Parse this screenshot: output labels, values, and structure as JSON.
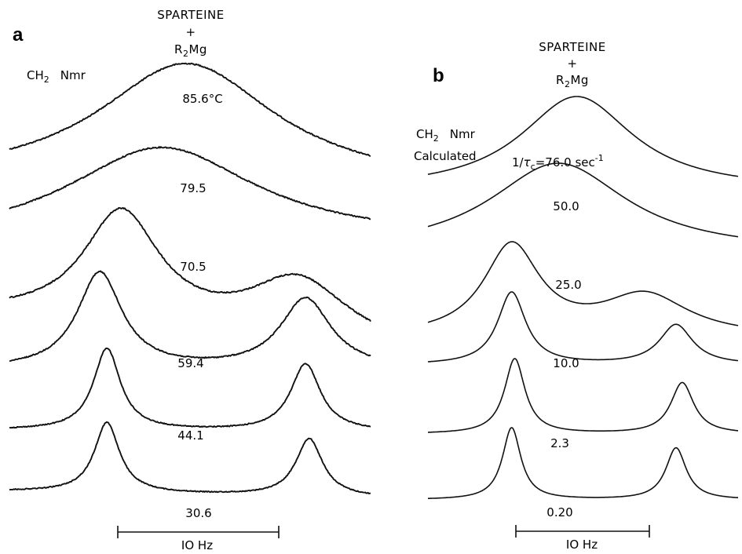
{
  "chart_data": [
    {
      "type": "line",
      "panel": "a",
      "title_lines": [
        "SPARTEINE",
        "+",
        "R2Mg"
      ],
      "nucleus_label": "CH2 Nmr",
      "unit_suffix": "°C",
      "scale_bar": "10 Hz",
      "series": [
        {
          "name": "85.6°C",
          "label": "85.6°C",
          "value": 85.6,
          "shape": "single",
          "peaks": [
            {
              "pos": 0.49,
              "h": 1.0,
              "w": 0.3
            }
          ],
          "skew": 0.0,
          "noise": 1.6
        },
        {
          "name": "79.5",
          "label": "79.5",
          "value": 79.5,
          "shape": "single",
          "peaks": [
            {
              "pos": 0.42,
              "h": 1.0,
              "w": 0.32
            }
          ],
          "skew": 0.0,
          "noise": 1.6
        },
        {
          "name": "70.5",
          "label": "70.5",
          "value": 70.5,
          "shape": "double",
          "peaks": [
            {
              "pos": 0.31,
              "h": 1.0,
              "w": 0.13
            },
            {
              "pos": 0.8,
              "h": 0.55,
              "w": 0.17
            }
          ],
          "noise": 1.7
        },
        {
          "name": "59.4",
          "label": "59.4",
          "value": 59.4,
          "shape": "double",
          "peaks": [
            {
              "pos": 0.25,
              "h": 1.0,
              "w": 0.075
            },
            {
              "pos": 0.82,
              "h": 0.73,
              "w": 0.085
            }
          ],
          "noise": 1.5
        },
        {
          "name": "44.1",
          "label": "44.1",
          "value": 44.1,
          "shape": "double",
          "peaks": [
            {
              "pos": 0.27,
              "h": 1.0,
              "w": 0.045
            },
            {
              "pos": 0.82,
              "h": 0.82,
              "w": 0.05
            }
          ],
          "noise": 1.3
        },
        {
          "name": "30.6",
          "label": "30.6",
          "value": 30.6,
          "shape": "double",
          "peaks": [
            {
              "pos": 0.27,
              "h": 1.0,
              "w": 0.042
            },
            {
              "pos": 0.83,
              "h": 0.82,
              "w": 0.045
            }
          ],
          "noise": 1.2
        }
      ]
    },
    {
      "type": "line",
      "panel": "b",
      "title_lines": [
        "SPARTEINE",
        "+",
        "R2Mg"
      ],
      "nucleus_label": "CH2 Nmr",
      "note": "Calculated",
      "rate_label": "1/τc=76.0 sec⁻¹",
      "scale_bar": "10 Hz",
      "series": [
        {
          "name": "76.0",
          "label": "1/τc=76.0 sec⁻¹",
          "value": 76.0,
          "peaks": [
            {
              "pos": 0.48,
              "h": 1.0,
              "w": 0.22
            }
          ]
        },
        {
          "name": "50.0",
          "label": "50.0",
          "value": 50.0,
          "peaks": [
            {
              "pos": 0.42,
              "h": 1.0,
              "w": 0.27
            }
          ]
        },
        {
          "name": "25.0",
          "label": "25.0",
          "value": 25.0,
          "peaks": [
            {
              "pos": 0.27,
              "h": 1.0,
              "w": 0.11
            },
            {
              "pos": 0.7,
              "h": 0.45,
              "w": 0.17
            }
          ]
        },
        {
          "name": "10.0",
          "label": "10.0",
          "value": 10.0,
          "peaks": [
            {
              "pos": 0.27,
              "h": 1.0,
              "w": 0.055
            },
            {
              "pos": 0.8,
              "h": 0.55,
              "w": 0.065
            }
          ]
        },
        {
          "name": "2.3",
          "label": "2.3",
          "value": 2.3,
          "peaks": [
            {
              "pos": 0.28,
              "h": 1.0,
              "w": 0.04
            },
            {
              "pos": 0.82,
              "h": 0.68,
              "w": 0.045
            }
          ]
        },
        {
          "name": "0.20",
          "label": "0.20",
          "value": 0.2,
          "peaks": [
            {
              "pos": 0.27,
              "h": 1.0,
              "w": 0.036
            },
            {
              "pos": 0.8,
              "h": 0.72,
              "w": 0.04
            }
          ]
        }
      ]
    }
  ],
  "text": {
    "a_letter": "a",
    "b_letter": "b",
    "title_top": "SPARTEINE",
    "title_plus": "+",
    "title_r": "R",
    "title_2": "2",
    "title_mg": "Mg",
    "ch": "CH",
    "two": "2",
    "nmr": "Nmr",
    "calculated": "Calculated",
    "rate_prefix": "1/",
    "tau": "τ",
    "rate_sub": "c",
    "rate_eq": "=76.0 sec",
    "rate_exp": "-1",
    "a_labels": [
      "85.6°C",
      "79.5",
      "70.5",
      "59.4",
      "44.1",
      "30.6"
    ],
    "b_labels": [
      "50.0",
      "25.0",
      "10.0",
      "2.3",
      "0.20"
    ],
    "scale_a": "IO Hz",
    "scale_b": "IO Hz"
  }
}
